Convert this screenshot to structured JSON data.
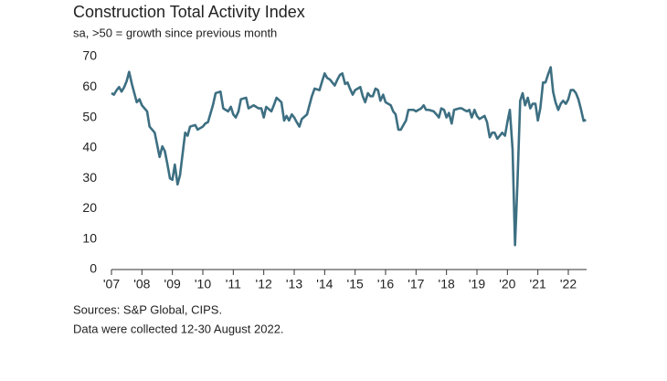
{
  "chart_data": {
    "type": "line",
    "title": "Construction Total Activity Index",
    "subtitle": "sa, >50 = growth since previous month",
    "notes": [
      "Sources: S&P Global, CIPS.",
      "Data were collected 12-30 August 2022."
    ],
    "x": [
      2007.0,
      2007.08,
      2007.17,
      2007.25,
      2007.33,
      2007.42,
      2007.5,
      2007.58,
      2007.67,
      2007.75,
      2007.83,
      2007.92,
      2008.0,
      2008.17,
      2008.25,
      2008.42,
      2008.5,
      2008.58,
      2008.67,
      2008.75,
      2008.83,
      2008.92,
      2009.0,
      2009.08,
      2009.17,
      2009.25,
      2009.42,
      2009.5,
      2009.58,
      2009.75,
      2009.83,
      2010.0,
      2010.08,
      2010.17,
      2010.33,
      2010.42,
      2010.58,
      2010.67,
      2010.83,
      2010.92,
      2011.0,
      2011.08,
      2011.17,
      2011.25,
      2011.42,
      2011.5,
      2011.67,
      2011.83,
      2011.92,
      2012.0,
      2012.08,
      2012.25,
      2012.33,
      2012.42,
      2012.58,
      2012.67,
      2012.75,
      2012.83,
      2012.92,
      2013.0,
      2013.08,
      2013.17,
      2013.25,
      2013.42,
      2013.58,
      2013.67,
      2013.83,
      2013.92,
      2014.0,
      2014.08,
      2014.17,
      2014.33,
      2014.42,
      2014.5,
      2014.58,
      2014.67,
      2014.75,
      2014.83,
      2014.92,
      2015.0,
      2015.17,
      2015.25,
      2015.33,
      2015.42,
      2015.5,
      2015.58,
      2015.67,
      2015.75,
      2015.83,
      2015.92,
      2016.0,
      2016.17,
      2016.25,
      2016.33,
      2016.42,
      2016.5,
      2016.67,
      2016.75,
      2016.92,
      2017.0,
      2017.08,
      2017.17,
      2017.25,
      2017.33,
      2017.42,
      2017.58,
      2017.67,
      2017.75,
      2017.83,
      2017.92,
      2018.0,
      2018.08,
      2018.17,
      2018.25,
      2018.42,
      2018.5,
      2018.58,
      2018.67,
      2018.75,
      2018.83,
      2018.92,
      2019.0,
      2019.08,
      2019.25,
      2019.33,
      2019.42,
      2019.5,
      2019.58,
      2019.67,
      2019.75,
      2019.83,
      2019.92,
      2020.0,
      2020.08,
      2020.17,
      2020.25,
      2020.33,
      2020.42,
      2020.5,
      2020.58,
      2020.67,
      2020.75,
      2020.83,
      2020.92,
      2021.0,
      2021.08,
      2021.17,
      2021.25,
      2021.33,
      2021.42,
      2021.5,
      2021.58,
      2021.67,
      2021.75,
      2021.83,
      2021.92,
      2022.0,
      2022.08,
      2022.17,
      2022.25,
      2022.33,
      2022.42,
      2022.5,
      2022.58
    ],
    "values": [
      58,
      57.5,
      59,
      60,
      58.5,
      60,
      62,
      65,
      61,
      58,
      55,
      56,
      54,
      52,
      47,
      45,
      41,
      37,
      40.5,
      39,
      35,
      30,
      29.5,
      34.5,
      28,
      31,
      45,
      44,
      47,
      47.5,
      46,
      47,
      48,
      48.5,
      54,
      58,
      58.5,
      53,
      52,
      53.5,
      51,
      50,
      52,
      56,
      56.5,
      53,
      54,
      53,
      53,
      50,
      53.5,
      52,
      54,
      56.5,
      55,
      49,
      50.5,
      49,
      51,
      50,
      48.5,
      47,
      49.5,
      51,
      57,
      59.5,
      59,
      62,
      64.5,
      63,
      62.5,
      60.5,
      62.5,
      64,
      64.5,
      61,
      61.5,
      59.5,
      57.5,
      59,
      60,
      57,
      55,
      58,
      57,
      57,
      59.5,
      59,
      55.5,
      57.5,
      55,
      54,
      52,
      51,
      46,
      46,
      49,
      52.5,
      52.5,
      52,
      52.5,
      53,
      54,
      52.5,
      52.5,
      52,
      51,
      50,
      53,
      52.5,
      50,
      51.5,
      48,
      52.5,
      53,
      53,
      52.5,
      52,
      52.5,
      50,
      52.5,
      50.5,
      49.5,
      50.5,
      48.5,
      43.5,
      45,
      45,
      43,
      44,
      45,
      44,
      48.5,
      52.5,
      39.5,
      8,
      28.5,
      55.5,
      58,
      54,
      56.5,
      53,
      54.5,
      54.5,
      49,
      53,
      61.5,
      61.5,
      64,
      66.5,
      58.5,
      55,
      52.5,
      54.5,
      55.5,
      54.5,
      56,
      59,
      59,
      58,
      56,
      52.5,
      48.9,
      49.2
    ],
    "color": "#3d6f82",
    "xlim": [
      2007,
      2022.6
    ],
    "xticks": [
      {
        "value": 2007,
        "label": "'07"
      },
      {
        "value": 2008,
        "label": "'08"
      },
      {
        "value": 2009,
        "label": "'09"
      },
      {
        "value": 2010,
        "label": "'10"
      },
      {
        "value": 2011,
        "label": "'11"
      },
      {
        "value": 2012,
        "label": "'12"
      },
      {
        "value": 2013,
        "label": "'13"
      },
      {
        "value": 2014,
        "label": "'14"
      },
      {
        "value": 2015,
        "label": "'15"
      },
      {
        "value": 2016,
        "label": "'16"
      },
      {
        "value": 2017,
        "label": "'17"
      },
      {
        "value": 2018,
        "label": "'18"
      },
      {
        "value": 2019,
        "label": "'19"
      },
      {
        "value": 2020,
        "label": "'20"
      },
      {
        "value": 2021,
        "label": "'21"
      },
      {
        "value": 2022,
        "label": "'22"
      }
    ],
    "ylim": [
      0,
      70
    ],
    "yticks": [
      0,
      10,
      20,
      30,
      40,
      50,
      60,
      70
    ],
    "grid": false
  }
}
